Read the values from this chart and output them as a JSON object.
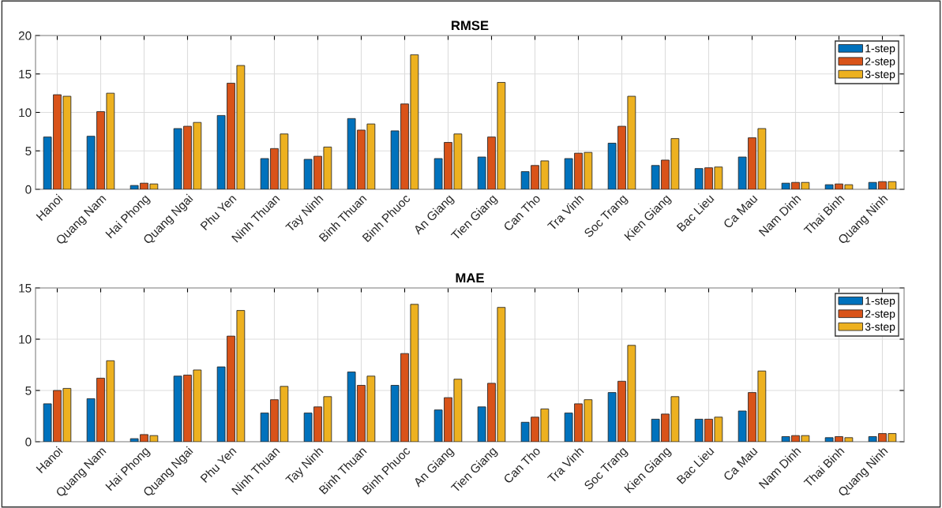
{
  "chart_data": [
    {
      "type": "bar",
      "title": "RMSE",
      "categories": [
        "Hanoi",
        "Quang Nam",
        "Hai Phong",
        "Quang Ngai",
        "Phu Yen",
        "Ninh Thuan",
        "Tay Ninh",
        "Binh Thuan",
        "Binh Phuoc",
        "An Giang",
        "Tien Giang",
        "Can Tho",
        "Tra Vinh",
        "Soc Trang",
        "Kien Giang",
        "Bac Lieu",
        "Ca Mau",
        "Nam Dinh",
        "Thai Binh",
        "Quang Ninh"
      ],
      "series": [
        {
          "name": "1-step",
          "color": "#0072bd",
          "values": [
            6.8,
            6.9,
            0.5,
            7.9,
            9.6,
            4.0,
            3.9,
            9.2,
            7.6,
            4.0,
            4.2,
            2.3,
            4.0,
            6.0,
            3.1,
            2.7,
            4.2,
            0.8,
            0.6,
            0.9
          ]
        },
        {
          "name": "2-step",
          "color": "#d95319",
          "values": [
            12.3,
            10.1,
            0.8,
            8.2,
            13.8,
            5.3,
            4.3,
            7.7,
            11.1,
            6.1,
            6.8,
            3.1,
            4.7,
            8.2,
            3.8,
            2.8,
            6.7,
            0.9,
            0.7,
            1.0
          ]
        },
        {
          "name": "3-step",
          "color": "#edb120",
          "values": [
            12.1,
            12.5,
            0.7,
            8.7,
            16.1,
            7.2,
            5.5,
            8.5,
            17.5,
            7.2,
            13.9,
            3.7,
            4.8,
            12.1,
            6.6,
            2.9,
            7.9,
            0.9,
            0.6,
            1.0
          ]
        }
      ],
      "ylim": [
        0,
        20
      ],
      "yticks": [
        0,
        5,
        10,
        15,
        20
      ],
      "grid": true,
      "legend": "top right"
    },
    {
      "type": "bar",
      "title": "MAE",
      "categories": [
        "Hanoi",
        "Quang Nam",
        "Hai Phong",
        "Quang Ngai",
        "Phu Yen",
        "Ninh Thuan",
        "Tay Ninh",
        "Binh Thuan",
        "Binh Phuoc",
        "An Giang",
        "Tien Giang",
        "Can Tho",
        "Tra Vinh",
        "Soc Trang",
        "Kien Giang",
        "Bac Lieu",
        "Ca Mau",
        "Nam Dinh",
        "Thai Binh",
        "Quang Ninh"
      ],
      "series": [
        {
          "name": "1-step",
          "color": "#0072bd",
          "values": [
            3.7,
            4.2,
            0.3,
            6.4,
            7.3,
            2.8,
            2.8,
            6.8,
            5.5,
            3.1,
            3.4,
            1.9,
            2.8,
            4.8,
            2.2,
            2.2,
            3.0,
            0.5,
            0.4,
            0.5
          ]
        },
        {
          "name": "2-step",
          "color": "#d95319",
          "values": [
            5.0,
            6.2,
            0.7,
            6.5,
            10.3,
            4.1,
            3.4,
            5.5,
            8.6,
            4.3,
            5.7,
            2.4,
            3.7,
            5.9,
            2.7,
            2.2,
            4.8,
            0.6,
            0.5,
            0.8
          ]
        },
        {
          "name": "3-step",
          "color": "#edb120",
          "values": [
            5.2,
            7.9,
            0.6,
            7.0,
            12.8,
            5.4,
            4.4,
            6.4,
            13.4,
            6.1,
            13.1,
            3.2,
            4.1,
            9.4,
            4.4,
            2.4,
            6.9,
            0.6,
            0.4,
            0.8
          ]
        }
      ],
      "ylim": [
        0,
        15
      ],
      "yticks": [
        0,
        5,
        10,
        15
      ],
      "grid": true,
      "legend": "top right"
    }
  ]
}
